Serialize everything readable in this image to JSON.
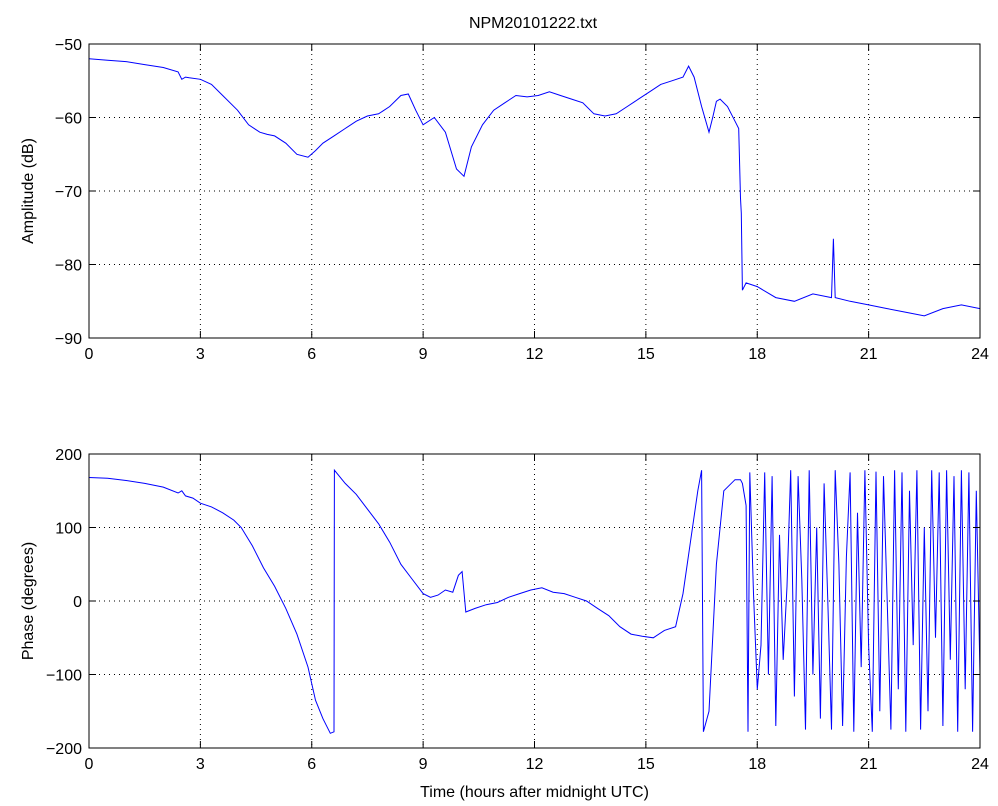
{
  "figure": {
    "title": "NPM20101222.txt"
  },
  "chart_data": [
    {
      "type": "line",
      "title": "NPM20101222.txt",
      "xlabel": "",
      "ylabel": "Amplitude (dB)",
      "xlim": [
        0,
        24
      ],
      "ylim": [
        -90,
        -50
      ],
      "xticks": [
        0,
        3,
        6,
        9,
        12,
        15,
        18,
        21,
        24
      ],
      "yticks": [
        -90,
        -80,
        -70,
        -60,
        -50
      ],
      "xtick_labels": [
        "0",
        "3",
        "6",
        "9",
        "12",
        "15",
        "18",
        "21",
        "24"
      ],
      "ytick_labels": [
        "−90",
        "−80",
        "−70",
        "−60",
        "−50"
      ],
      "grid": true,
      "color": "#0000ff",
      "series": [
        {
          "x": [
            0,
            0.5,
            1,
            1.5,
            2,
            2.4,
            2.5,
            2.6,
            2.7,
            3,
            3.3,
            3.6,
            4,
            4.3,
            4.6,
            4.8,
            5,
            5.3,
            5.6,
            5.9,
            6.1,
            6.3,
            6.6,
            6.9,
            7.2,
            7.5,
            7.8,
            8.1,
            8.4,
            8.6,
            8.8,
            9,
            9.3,
            9.6,
            9.9,
            10.1,
            10.3,
            10.6,
            10.9,
            11.2,
            11.5,
            11.8,
            12.1,
            12.4,
            12.7,
            13,
            13.3,
            13.6,
            13.9,
            14.2,
            14.5,
            14.8,
            15.1,
            15.4,
            15.7,
            16,
            16.15,
            16.3,
            16.5,
            16.7,
            16.8,
            16.9,
            17.0,
            17.2,
            17.4,
            17.5,
            17.55,
            17.57,
            17.6,
            17.7,
            18,
            18.5,
            19,
            19.5,
            20,
            20.05,
            20.1,
            20.5,
            21,
            21.5,
            22,
            22.5,
            23,
            23.5,
            24
          ],
          "y": [
            -52,
            -52.2,
            -52.4,
            -52.8,
            -53.2,
            -53.8,
            -54.8,
            -54.5,
            -54.6,
            -54.8,
            -55.5,
            -57,
            -59,
            -61,
            -62,
            -62.3,
            -62.5,
            -63.5,
            -65,
            -65.4,
            -64.5,
            -63.5,
            -62.5,
            -61.5,
            -60.5,
            -59.8,
            -59.5,
            -58.5,
            -57,
            -56.8,
            -59,
            -61,
            -60,
            -62,
            -67,
            -68,
            -64,
            -61,
            -59,
            -58,
            -57,
            -57.2,
            -57,
            -56.5,
            -57,
            -57.5,
            -58,
            -59.5,
            -59.8,
            -59.5,
            -58.5,
            -57.5,
            -56.5,
            -55.5,
            -55,
            -54.5,
            -53,
            -54.5,
            -58.5,
            -62,
            -60,
            -57.8,
            -57.5,
            -58.5,
            -60.5,
            -61.5,
            -71,
            -73,
            -83.5,
            -82.5,
            -83,
            -84.5,
            -85,
            -84,
            -84.5,
            -76.5,
            -84.5,
            -85,
            -85.5,
            -86,
            -86.5,
            -87,
            -86,
            -85.5,
            -86
          ]
        }
      ]
    },
    {
      "type": "line",
      "title": "",
      "xlabel": "Time (hours after midnight UTC)",
      "ylabel": "Phase (degrees)",
      "xlim": [
        0,
        24
      ],
      "ylim": [
        -200,
        200
      ],
      "xticks": [
        0,
        3,
        6,
        9,
        12,
        15,
        18,
        21,
        24
      ],
      "yticks": [
        -200,
        -100,
        0,
        100,
        200
      ],
      "xtick_labels": [
        "0",
        "3",
        "6",
        "9",
        "12",
        "15",
        "18",
        "21",
        "24"
      ],
      "ytick_labels": [
        "−200",
        "−100",
        "0",
        "100",
        "200"
      ],
      "grid": true,
      "color": "#0000ff",
      "series": [
        {
          "x": [
            0,
            0.5,
            1,
            1.5,
            2,
            2.4,
            2.5,
            2.6,
            2.8,
            3,
            3.3,
            3.6,
            3.9,
            4.1,
            4.4,
            4.7,
            5,
            5.3,
            5.6,
            5.9,
            6.1,
            6.3,
            6.5,
            6.6,
            6.61,
            6.9,
            7.2,
            7.5,
            7.8,
            8.1,
            8.4,
            8.7,
            9,
            9.2,
            9.4,
            9.6,
            9.8,
            9.95,
            10.05,
            10.15,
            10.4,
            10.7,
            11,
            11.3,
            11.6,
            11.9,
            12.2,
            12.5,
            12.8,
            13.1,
            13.4,
            13.7,
            14,
            14.3,
            14.6,
            14.9,
            15.2,
            15.5,
            15.8,
            16.0,
            16.2,
            16.4,
            16.5,
            16.55,
            16.7,
            16.9,
            17.1,
            17.4,
            17.55,
            17.6,
            17.7
          ],
          "y": [
            168,
            167,
            164,
            160,
            155,
            147,
            150,
            143,
            140,
            133,
            128,
            120,
            110,
            100,
            75,
            45,
            20,
            -10,
            -45,
            -90,
            -135,
            -160,
            -180,
            -178,
            178,
            160,
            145,
            125,
            105,
            80,
            50,
            30,
            10,
            5,
            8,
            15,
            12,
            35,
            40,
            -15,
            -10,
            -5,
            -2,
            5,
            10,
            15,
            18,
            12,
            10,
            5,
            0,
            -10,
            -20,
            -35,
            -45,
            -48,
            -50,
            -40,
            -35,
            10,
            80,
            150,
            178,
            -178,
            -150,
            50,
            150,
            165,
            165,
            160,
            130
          ]
        },
        {
          "name": "",
          "x": [
            17.7,
            17.75,
            17.8,
            17.9,
            18.0,
            18.1,
            18.2,
            18.3,
            18.4,
            18.5,
            18.6,
            18.7,
            18.8,
            18.9,
            19.0,
            19.1,
            19.2,
            19.3,
            19.4,
            19.5,
            19.6,
            19.7,
            19.8,
            19.9,
            20.0,
            20.1,
            20.2,
            20.3,
            20.4,
            20.5,
            20.6,
            20.7,
            20.8,
            20.9,
            21.0,
            21.1,
            21.2,
            21.3,
            21.4,
            21.5,
            21.6,
            21.7,
            21.8,
            21.9,
            22.0,
            22.1,
            22.2,
            22.3,
            22.4,
            22.5,
            22.6,
            22.7,
            22.8,
            22.9,
            23.0,
            23.1,
            23.2,
            23.3,
            23.4,
            23.5,
            23.6,
            23.7,
            23.8,
            23.9,
            24.0
          ],
          "y": [
            130,
            -178,
            175,
            10,
            -120,
            -60,
            175,
            -100,
            170,
            -170,
            90,
            -80,
            20,
            178,
            -130,
            170,
            30,
            -175,
            178,
            -100,
            100,
            -160,
            160,
            0,
            -175,
            178,
            50,
            -170,
            60,
            175,
            -178,
            120,
            -90,
            178,
            -60,
            -178,
            176,
            -150,
            170,
            0,
            -175,
            178,
            -120,
            175,
            -178,
            150,
            -60,
            178,
            -175,
            100,
            -150,
            178,
            -50,
            175,
            -170,
            178,
            -80,
            170,
            -178,
            178,
            -120,
            175,
            -178,
            150,
            -100
          ]
        }
      ]
    }
  ]
}
